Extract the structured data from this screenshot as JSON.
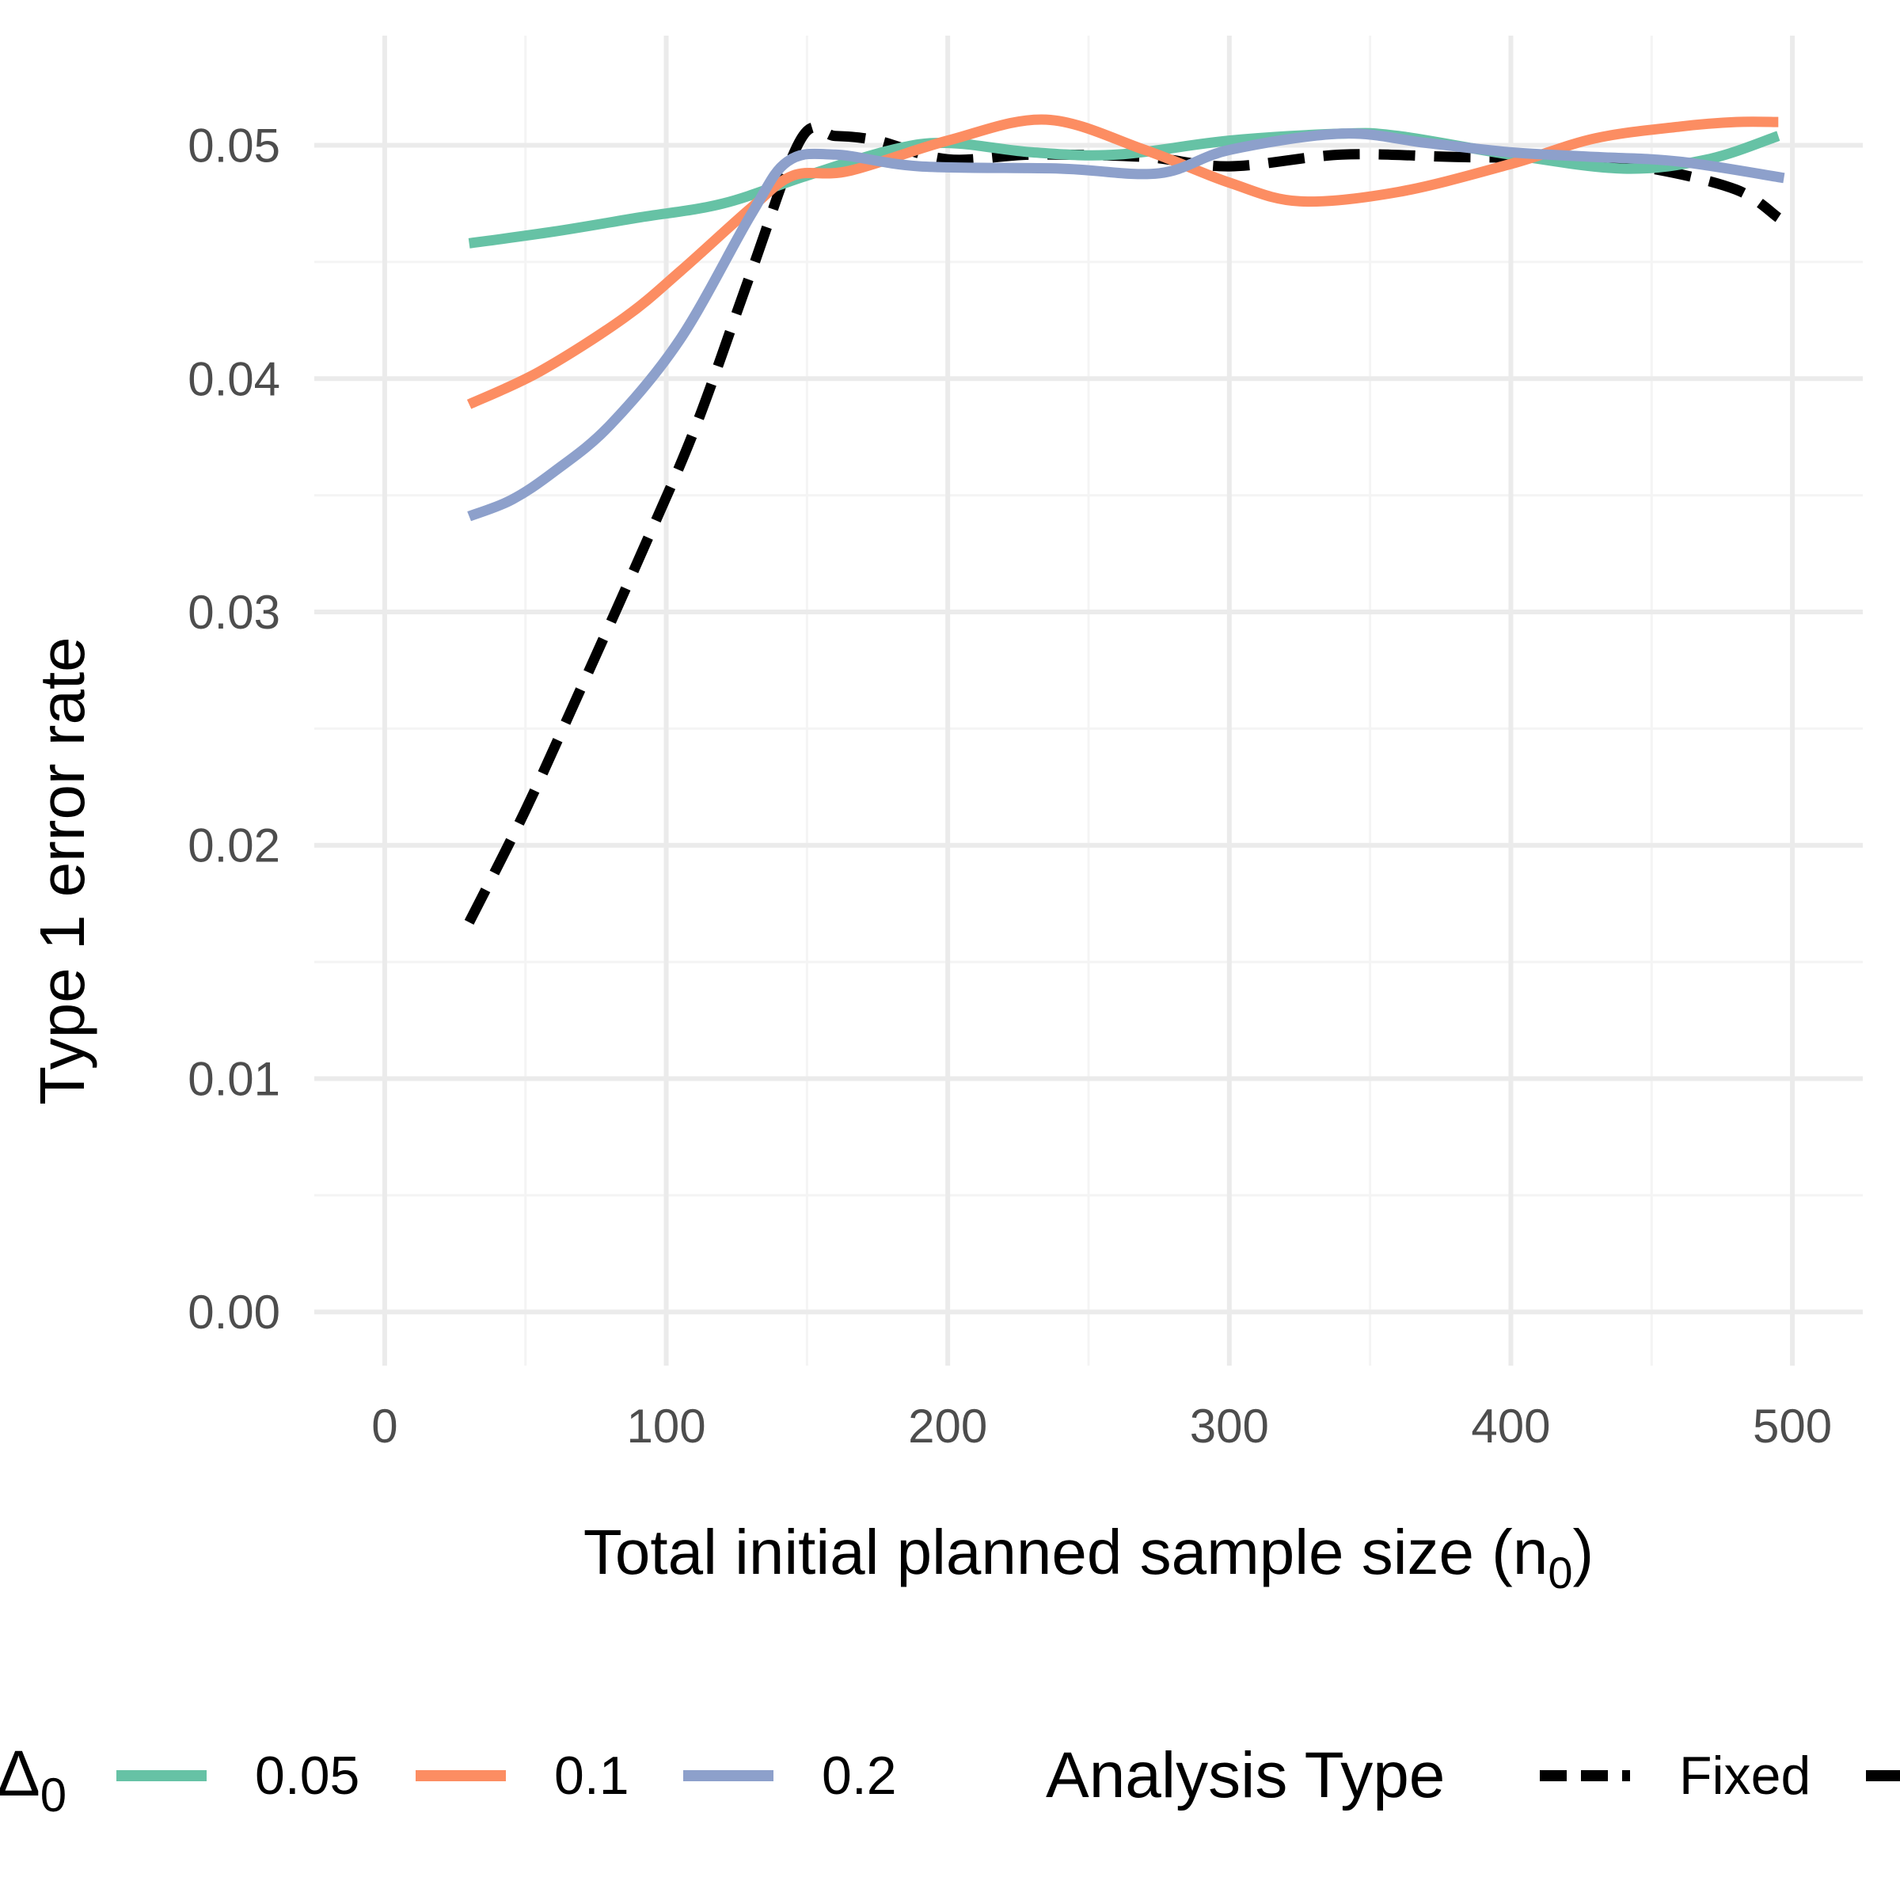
{
  "chart_data": {
    "type": "line",
    "xlabel": "Total initial planned sample size (n",
    "xlabel_sub": "0",
    "xlabel_close": ")",
    "ylabel": "Type 1 error rate",
    "xlim": [
      -25,
      525
    ],
    "ylim": [
      -0.0023,
      0.0547
    ],
    "x_ticks": [
      0,
      100,
      200,
      300,
      400,
      500
    ],
    "x_tick_labels": [
      "0",
      "100",
      "200",
      "300",
      "400",
      "500"
    ],
    "y_ticks": [
      0.0,
      0.01,
      0.02,
      0.03,
      0.04,
      0.05
    ],
    "y_tick_labels": [
      "0.00",
      "0.01",
      "0.02",
      "0.03",
      "0.04",
      "0.05"
    ],
    "grid": true,
    "legend_position": "bottom",
    "legend": {
      "delta_title": "Δ",
      "delta_title_sub": "0",
      "delta_entries": [
        "0.05",
        "0.1",
        "0.2"
      ],
      "type_title": "Analysis Type",
      "type_entries": [
        "Fixed"
      ]
    },
    "series": [
      {
        "name": "0.05",
        "group": "delta",
        "color": "#66C2A5",
        "style": "solid",
        "x": [
          30,
          60,
          90,
          120,
          150,
          180,
          200,
          230,
          260,
          300,
          340,
          360,
          400,
          440,
          470,
          495
        ],
        "y": [
          0.0458,
          0.0463,
          0.0469,
          0.0475,
          0.0487,
          0.0498,
          0.0501,
          0.0497,
          0.0496,
          0.0502,
          0.0505,
          0.0504,
          0.0496,
          0.049,
          0.0494,
          0.0504
        ]
      },
      {
        "name": "0.1",
        "group": "delta",
        "color": "#FC8D62",
        "style": "solid",
        "x": [
          30,
          55,
          85,
          105,
          130,
          145,
          165,
          200,
          235,
          270,
          300,
          325,
          360,
          400,
          430,
          460,
          480,
          495
        ],
        "y": [
          0.0389,
          0.0403,
          0.0426,
          0.0446,
          0.0473,
          0.0487,
          0.0489,
          0.0502,
          0.0511,
          0.0498,
          0.0484,
          0.0476,
          0.048,
          0.0492,
          0.0503,
          0.0508,
          0.051,
          0.051
        ]
      },
      {
        "name": "0.2",
        "group": "delta",
        "color": "#8DA0CB",
        "style": "solid",
        "x": [
          30,
          45,
          60,
          80,
          105,
          130,
          143,
          160,
          190,
          240,
          275,
          300,
          340,
          370,
          400,
          430,
          460,
          497
        ],
        "y": [
          0.0341,
          0.0348,
          0.036,
          0.038,
          0.0417,
          0.047,
          0.0493,
          0.0496,
          0.0491,
          0.049,
          0.0488,
          0.0498,
          0.0505,
          0.0501,
          0.0497,
          0.0495,
          0.0493,
          0.0486
        ]
      },
      {
        "name": "Fixed",
        "group": "type",
        "color": "#000000",
        "style": "dashed",
        "x": [
          30,
          50,
          70,
          90,
          110,
          130,
          148,
          160,
          175,
          200,
          230,
          270,
          300,
          340,
          380,
          420,
          450,
          480,
          495
        ],
        "y": [
          0.0167,
          0.0215,
          0.0268,
          0.0322,
          0.0378,
          0.0445,
          0.0503,
          0.0504,
          0.0502,
          0.0494,
          0.0496,
          0.0495,
          0.0491,
          0.0496,
          0.0495,
          0.0494,
          0.049,
          0.0481,
          0.0469
        ]
      }
    ]
  }
}
